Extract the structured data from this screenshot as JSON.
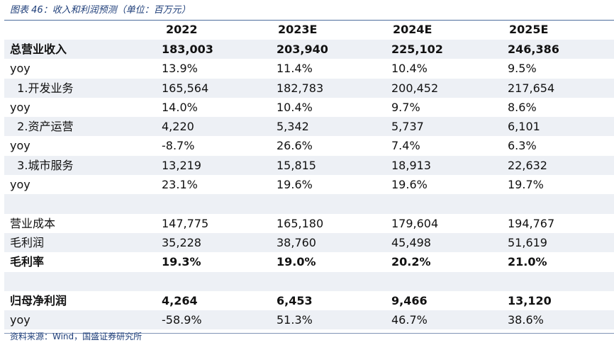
{
  "caption": "图表 46：收入和利润预测（单位：百万元）",
  "columns": [
    "",
    "2022",
    "2023E",
    "2024E",
    "2025E"
  ],
  "rows": [
    {
      "label": "总营业收入",
      "values": [
        "183,003",
        "203,940",
        "225,102",
        "246,386"
      ],
      "bold": true,
      "shaded": true
    },
    {
      "label": "yoy",
      "values": [
        "13.9%",
        "11.4%",
        "10.4%",
        "9.5%"
      ],
      "bold": false,
      "shaded": false
    },
    {
      "label": "  1.开发业务",
      "values": [
        "165,564",
        "182,783",
        "200,452",
        "217,654"
      ],
      "bold": false,
      "shaded": true
    },
    {
      "label": "yoy",
      "values": [
        "14.0%",
        "10.4%",
        "9.7%",
        "8.6%"
      ],
      "bold": false,
      "shaded": false
    },
    {
      "label": "  2.资产运营",
      "values": [
        "4,220",
        "5,342",
        "5,737",
        "6,101"
      ],
      "bold": false,
      "shaded": true
    },
    {
      "label": "yoy",
      "values": [
        "-8.7%",
        "26.6%",
        "7.4%",
        "6.3%"
      ],
      "bold": false,
      "shaded": false
    },
    {
      "label": "  3.城市服务",
      "values": [
        "13,219",
        "15,815",
        "18,913",
        "22,632"
      ],
      "bold": false,
      "shaded": true
    },
    {
      "label": "yoy",
      "values": [
        "23.1%",
        "19.6%",
        "19.6%",
        "19.7%"
      ],
      "bold": false,
      "shaded": false
    },
    {
      "label": "",
      "values": [
        "",
        "",
        "",
        ""
      ],
      "bold": false,
      "shaded": true,
      "blank": true
    },
    {
      "label": "营业成本",
      "values": [
        "147,775",
        "165,180",
        "179,604",
        "194,767"
      ],
      "bold": false,
      "shaded": false
    },
    {
      "label": "毛利润",
      "values": [
        "35,228",
        "38,760",
        "45,498",
        "51,619"
      ],
      "bold": false,
      "shaded": true
    },
    {
      "label": "毛利率",
      "values": [
        "19.3%",
        "19.0%",
        "20.2%",
        "21.0%"
      ],
      "bold": true,
      "shaded": false
    },
    {
      "label": "",
      "values": [
        "",
        "",
        "",
        ""
      ],
      "bold": false,
      "shaded": true,
      "blank": true
    },
    {
      "label": "归母净利润",
      "values": [
        "4,264",
        "6,453",
        "9,466",
        "13,120"
      ],
      "bold": true,
      "shaded": false
    },
    {
      "label": "yoy",
      "values": [
        "-58.9%",
        "51.3%",
        "46.7%",
        "38.6%"
      ],
      "bold": false,
      "shaded": true
    }
  ],
  "source": "资料来源：Wind，国盛证券研究所"
}
